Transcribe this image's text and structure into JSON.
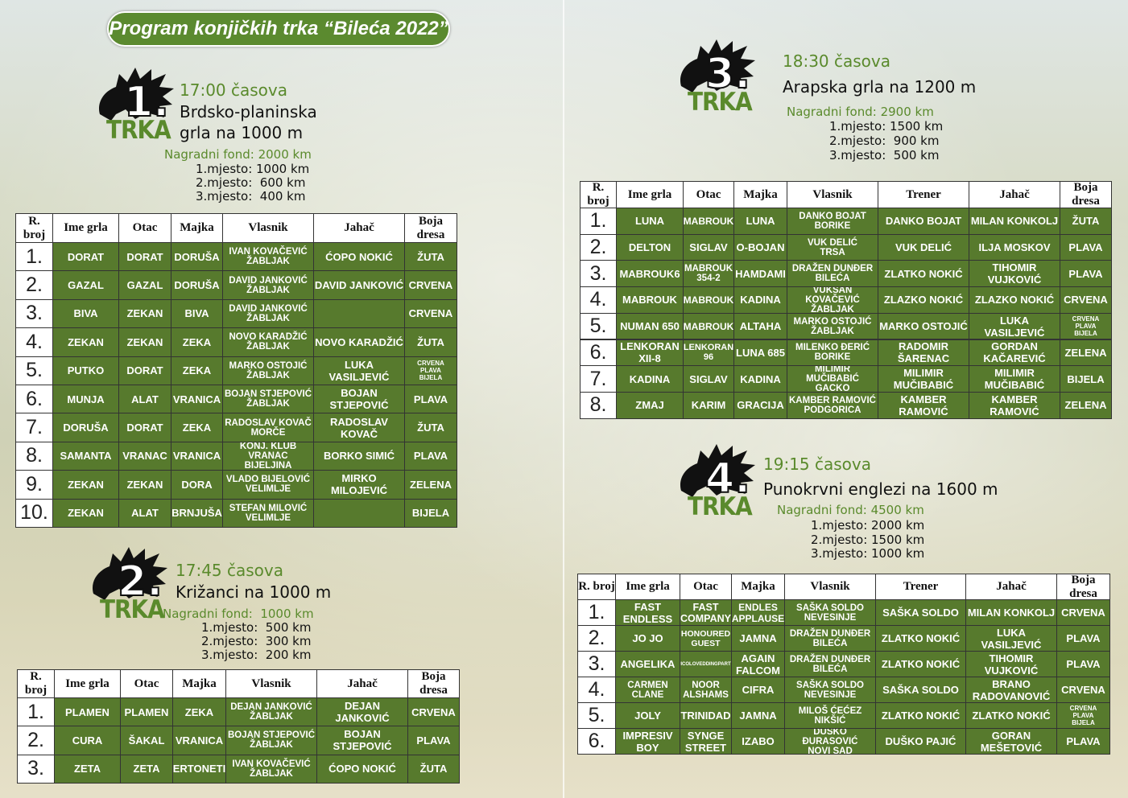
{
  "title": "Program konjičkih trka “Bileća 2022”",
  "races": [
    {
      "number": "1.",
      "label": "TRKA",
      "time": "17:00 časova",
      "name": [
        "Brdsko-planinska",
        "grla na 1000 m"
      ],
      "fund": "Nagradni fond: 2000 km",
      "prizes": [
        "1.mjesto: 1000 km",
        "2.mjesto:  600 km",
        "3.mjesto:  400 km"
      ],
      "table": {
        "headers": [
          "R. broj",
          "Ime grla",
          "Otac",
          "Majka",
          "Vlasnik",
          "Jahač",
          "Boja dresa"
        ],
        "rows": [
          [
            "1.",
            "DORAT",
            "DORAT",
            "DORUŠA",
            "IVAN KOVAČEVIĆ\nŽABLJAK",
            "ĆOPO NOKIĆ",
            "ŽUTA"
          ],
          [
            "2.",
            "GAZAL",
            "GAZAL",
            "DORUŠA",
            "DAVID JANKOVIĆ\nŽABLJAK",
            "DAVID JANKOVIĆ",
            "CRVENA"
          ],
          [
            "3.",
            "BIVA",
            "ZEKAN",
            "BIVA",
            "DAVID JANKOVIĆ\nŽABLJAK",
            null,
            "CRVENA"
          ],
          [
            "4.",
            "ZEKAN",
            "ZEKAN",
            "ZEKA",
            "NOVO KARADŽIĆ\nŽABLJAK",
            "NOVO KARADŽIĆ",
            "ŽUTA"
          ],
          [
            "5.",
            "PUTKO",
            "DORAT",
            "ZEKA",
            "MARKO OSTOJIĆ\nŽABLJAK",
            "LUKA VASILJEVIĆ",
            "CRVENA\nPLAVA\nBIJELA"
          ],
          [
            "6.",
            "MUNJA",
            "ALAT",
            "VRANICA",
            "BOJAN STJEPOVIĆ\nŽABLJAK",
            "BOJAN STJEPOVIĆ",
            "PLAVA"
          ],
          [
            "7.",
            "DORUŠA",
            "DORAT",
            "ZEKA",
            "RADOSLAV KOVAČ\nMORČE",
            "RADOSLAV KOVAČ",
            "ŽUTA"
          ],
          [
            "8.",
            "SAMANTA",
            "VRANAC",
            "VRANICA",
            "KONJ. KLUB VRANAC\nBIJELJINA",
            "BORKO SIMIĆ",
            "PLAVA"
          ],
          [
            "9.",
            "ZEKAN",
            "ZEKAN",
            "DORA",
            "VLADO BIJELOVIĆ\nVELIMLJE",
            "MIRKO MILOJEVIĆ",
            "ZELENA"
          ],
          [
            "10.",
            "ZEKAN",
            "ALAT",
            "BRNJUŠA",
            "STEFAN MILOVIĆ\nVELIMLJE",
            null,
            "BIJELA"
          ]
        ]
      }
    },
    {
      "number": "2.",
      "label": "TRKA",
      "time": "17:45 časova",
      "name": [
        "Križanci na 1000 m"
      ],
      "fund": "Nagradni fond:  1000 km",
      "prizes": [
        "1.mjesto:  500 km",
        "2.mjesto:  300 km",
        "3.mjesto:  200 km"
      ],
      "table": {
        "headers": [
          "R. broj",
          "Ime grla",
          "Otac",
          "Majka",
          "Vlasnik",
          "Jahač",
          "Boja dresa"
        ],
        "rows": [
          [
            "1.",
            "PLAMEN",
            "PLAMEN",
            "ZEKA",
            "DEJAN JANKOVIĆ\nŽABLJAK",
            "DEJAN JANKOVIĆ",
            "CRVENA"
          ],
          [
            "2.",
            "CURA",
            "ŠAKAL",
            "VRANICA",
            "BOJAN STJEPOVIĆ\nŽABLJAK",
            "BOJAN STJEPOVIĆ",
            "PLAVA"
          ],
          [
            "3.",
            "ZETA",
            "ZETA",
            "ERTONETI",
            "IVAN KOVAČEVIĆ\nŽABLJAK",
            "ĆOPO NOKIĆ",
            "ŽUTA"
          ]
        ]
      }
    },
    {
      "number": "3.",
      "label": "TRKA",
      "time": "18:30 časova",
      "name": [
        "Arapska grla na 1200 m"
      ],
      "fund": "Nagradni fond: 2900 km",
      "prizes": [
        "1.mjesto: 1500 km",
        "2.mjesto:  900 km",
        "3.mjesto:  500 km"
      ],
      "table": {
        "headers": [
          "R. broj",
          "Ime grla",
          "Otac",
          "Majka",
          "Vlasnik",
          "Trener",
          "Jahač",
          "Boja dresa"
        ],
        "rows": [
          [
            "1.",
            "LUNA",
            "MABROUK",
            "LUNA",
            "DANKO BOJAT\nBORIKE",
            "DANKO BOJAT",
            "MILAN KONKOLJ",
            "ŽUTA"
          ],
          [
            "2.",
            "DELTON",
            "SIGLAV",
            "O-BOJAN",
            "VUK DELIĆ\nTRSA",
            "VUK DELIĆ",
            "ILJA MOSKOV",
            "PLAVA"
          ],
          [
            "3.",
            "MABROUK6",
            "MABROUK\n354-2",
            "HAMDAMI",
            "DRAŽEN DUNĐER\nBILEĆA",
            "ZLATKO NOKIĆ",
            "TIHOMIR VUJKOVIĆ",
            "PLAVA"
          ],
          [
            "4.",
            "MABROUK",
            "MABROUK",
            "KADINA",
            "VUKSAN KOVAČEVIĆ\nŽABLJAK",
            "ZLAZKO NOKIĆ",
            "ZLAZKO NOKIĆ",
            "CRVENA"
          ],
          [
            "5.",
            "NUMAN 650",
            "MABROUK",
            "ALTAHA",
            "MARKO OSTOJIĆ\nŽABLJAK",
            "MARKO OSTOJIĆ",
            "LUKA VASILJEVIĆ",
            "CRVENA\nPLAVA\nBIJELA"
          ],
          [
            "6.",
            "LENKORAN XII-8",
            "LENKORAN 96",
            "LUNA 685",
            "MILENKO ĐERIĆ\nBORIKE",
            "RADOMIR ŠARENAC",
            "GORDAN KAČAREVIĆ",
            "ZELENA"
          ],
          [
            "7.",
            "KADINA",
            "SIGLAV",
            "KADINA",
            "MILIMIR MUČIBABIĆ\nGACKO",
            "MILIMIR MUČIBABIĆ",
            "MILIMIR MUČIBABIĆ",
            "BIJELA"
          ],
          [
            "8.",
            "ZMAJ",
            "KARIM",
            "GRACIJA",
            "KAMBER RAMOVIĆ\nPODGORICA",
            "KAMBER RAMOVIĆ",
            "KAMBER RAMOVIĆ",
            "ZELENA"
          ]
        ]
      }
    },
    {
      "number": "4.",
      "label": "TRKA",
      "time": "19:15 časova",
      "name": [
        "Punokrvni englezi na 1600 m"
      ],
      "fund": "Nagradni fond: 4500 km",
      "prizes": [
        "1.mjesto: 2000 km",
        "2.mjesto: 1500 km",
        "3.mjesto: 1000 km"
      ],
      "table": {
        "headers": [
          "R. broj",
          "Ime grla",
          "Otac",
          "Majka",
          "Vlasnik",
          "Trener",
          "Jahač",
          "Boja dresa"
        ],
        "rows": [
          [
            "1.",
            "FAST ENDLESS",
            "FAST COMPANY",
            "ENDLES APPLAUSE",
            "SAŠKA SOLDO\nNEVESINJE",
            "SAŠKA SOLDO",
            "MILAN KONKOLJ",
            "CRVENA"
          ],
          [
            "2.",
            "JO JO",
            "HONOURED\nGUEST",
            "JAMNA",
            "DRAŽEN DUNĐER\nBILEĆA",
            "ZLATKO NOKIĆ",
            "LUKA VASILJEVIĆ",
            "PLAVA"
          ],
          [
            "3.",
            "ANGELIKA",
            "PICOLOVEDDINGPARTY",
            "AGAIN FALCOM",
            "DRAŽEN DUNĐER\nBILEĆA",
            "ZLATKO NOKIĆ",
            "TIHOMIR VUJKOVIĆ",
            "PLAVA"
          ],
          [
            "4.",
            "CARMEN\nCLANE",
            "NOOR\nALSHAMS",
            "CIFRA",
            "SAŠKA SOLDO\nNEVESINJE",
            "SAŠKA SOLDO",
            "BRANO RADOVANOVIĆ",
            "CRVENA"
          ],
          [
            "5.",
            "JOLY",
            "TRINIDAD",
            "JAMNA",
            "MILOŠ ĆEĆEZ\nNIKŠIĆ",
            "ZLATKO NOKIĆ",
            "ZLATKO NOKIĆ",
            "CRVENA\nPLAVA\nBIJELA"
          ],
          [
            "6.",
            "IMPRESIV BOY",
            "SYNGE STREET",
            "IZABO",
            "DUŠKO ĐURASOVIĆ\nNOVI SAD",
            "DUŠKO PAJIĆ",
            "GORAN MEŠETOVIĆ",
            "PLAVA"
          ]
        ]
      }
    }
  ]
}
